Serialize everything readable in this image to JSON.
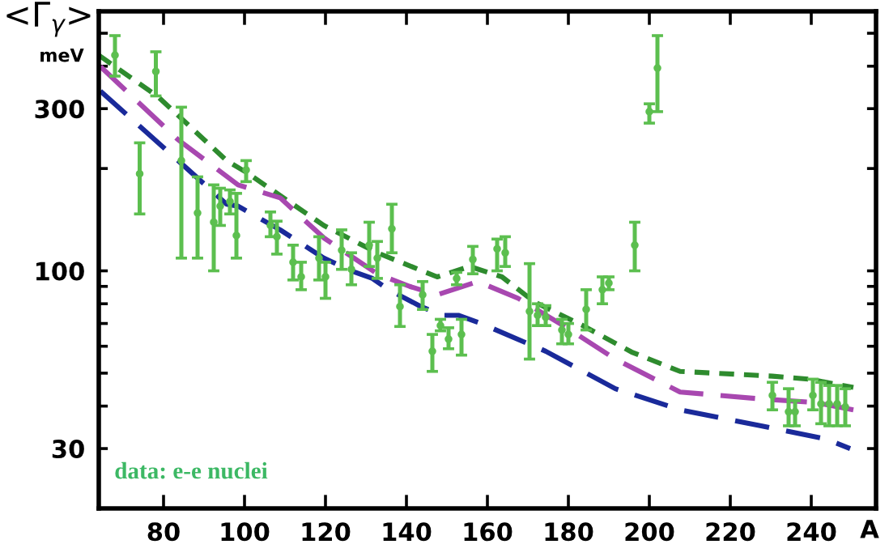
{
  "chart_data": {
    "type": "line",
    "ylabel": "<Γ$_{γ}$>\nmeV",
    "xlabel": "A",
    "annotations": [
      "data: e-e nuclei"
    ],
    "xlim": [
      64,
      256
    ],
    "xticks": [
      80,
      100,
      120,
      140,
      160,
      180,
      200,
      220,
      240
    ],
    "ylim": [
      20,
      580
    ],
    "log": true,
    "yticks": [
      30,
      100,
      300,
      {
        "value": 40,
        "label": null
      },
      {
        "value": 50,
        "label": null
      },
      {
        "value": 60,
        "label": null
      },
      {
        "value": 70,
        "label": null
      },
      {
        "value": 80,
        "label": null
      },
      {
        "value": 90,
        "label": null
      },
      {
        "value": 200,
        "label": null
      },
      {
        "value": 400,
        "label": null
      },
      {
        "value": 500,
        "label": null
      }
    ],
    "grid": false,
    "series": [
      {
        "color": "#2e8b2e",
        "line_style": "dotted",
        "marker": "none",
        "x": [
          64,
          78.4,
          95.6,
          100.4,
          119.6,
          132.8,
          147.6,
          155.6,
          163.6,
          171.6,
          183.6,
          195.6,
          207.6,
          230.4,
          239.6,
          250.4
        ],
        "values": [
          431,
          327,
          211,
          195,
          136,
          113,
          96,
          103,
          96,
          81,
          69,
          57.7,
          50.6,
          49,
          48,
          45.4
        ]
      },
      {
        "color": "#a848b0",
        "line_style": "dashed",
        "marker": "none",
        "x": [
          64.4,
          83.6,
          98.4,
          108.8,
          119.6,
          132.8,
          140.8,
          147.6,
          157.6,
          167.6,
          179.6,
          191.6,
          207.6,
          227.6,
          240.8,
          250.4
        ],
        "values": [
          399,
          243,
          179,
          164,
          125,
          98,
          90,
          85,
          93,
          83,
          68,
          55,
          44,
          42,
          41,
          39
        ]
      },
      {
        "color": "#1a2a9a",
        "line_style": "dashed",
        "marker": "none",
        "x": [
          64.4,
          83.6,
          95.6,
          98.4,
          108.8,
          119.6,
          126.4,
          131.6,
          135.6,
          143.6,
          148.8,
          152.8,
          158.4,
          174.4,
          191.6,
          207.6,
          227.6,
          243.6,
          249.6
        ],
        "values": [
          338,
          211,
          157,
          155,
          132,
          109,
          100,
          95,
          88,
          78.5,
          74,
          74,
          70,
          58,
          45,
          39,
          35,
          32,
          30
        ]
      },
      {
        "type": "scatter",
        "color": "#5cbf4f",
        "marker": "circle",
        "x": [
          68,
          74.1,
          78.1,
          84.4,
          88.4,
          92.4,
          94,
          96.4,
          98,
          100.4,
          106.4,
          108,
          112,
          114,
          118.4,
          120,
          124,
          126.4,
          130.8,
          132.8,
          136.4,
          138.4,
          144,
          146.4,
          148.4,
          150.4,
          153.6,
          152.4,
          156.4,
          162.4,
          164.4,
          170.4,
          172.4,
          174.4,
          178.4,
          180,
          184.4,
          188.4,
          190,
          196.4,
          200,
          202,
          230.4,
          234.4,
          236,
          240.4,
          242.4,
          244.4,
          246.4,
          248.4
        ],
        "values": [
          431,
          193,
          386,
          211,
          148,
          139,
          155,
          160,
          127,
          198,
          136,
          126,
          106,
          96,
          109,
          96,
          115,
          101,
          119,
          109,
          133,
          78.5,
          85,
          58,
          69,
          63,
          65,
          95,
          108,
          116,
          113,
          76,
          74,
          73,
          67,
          65,
          77,
          88,
          92,
          119,
          294,
          395,
          43,
          38.5,
          38.5,
          43,
          40.6,
          40.6,
          40.6,
          39.8
        ],
        "errors": [
          [
            374,
            492
          ],
          [
            147,
            238
          ],
          [
            327,
            441
          ],
          [
            109,
            303
          ],
          [
            109,
            189
          ],
          [
            100,
            179
          ],
          [
            136,
            175
          ],
          [
            147,
            173
          ],
          [
            109,
            169
          ],
          [
            183,
            211
          ],
          [
            126,
            149
          ],
          [
            112,
            140
          ],
          [
            94,
            119
          ],
          [
            88,
            106
          ],
          [
            94,
            126
          ],
          [
            83,
            106
          ],
          [
            101,
            132
          ],
          [
            91,
            113
          ],
          [
            103,
            139
          ],
          [
            95,
            122
          ],
          [
            113,
            157
          ],
          [
            68.6,
            91
          ],
          [
            77,
            93
          ],
          [
            50.6,
            65
          ],
          [
            66.6,
            72
          ],
          [
            59,
            68
          ],
          [
            56.5,
            72
          ],
          [
            91,
            99
          ],
          [
            98,
            118
          ],
          [
            100,
            124
          ],
          [
            103,
            126
          ],
          [
            55,
            105
          ],
          [
            69,
            80
          ],
          [
            69,
            79
          ],
          [
            61,
            72
          ],
          [
            61,
            70
          ],
          [
            67,
            88
          ],
          [
            80,
            96
          ],
          [
            88,
            96
          ],
          [
            100,
            139
          ],
          [
            272,
            310
          ],
          [
            294,
            492
          ],
          [
            39,
            47
          ],
          [
            35,
            45
          ],
          [
            35,
            41.5
          ],
          [
            39,
            48
          ],
          [
            35.5,
            47
          ],
          [
            35,
            46
          ],
          [
            35,
            46
          ],
          [
            35,
            45
          ]
        ]
      }
    ]
  }
}
